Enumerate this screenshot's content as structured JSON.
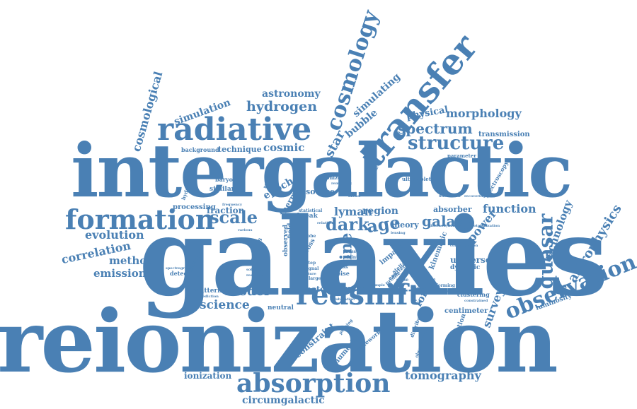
{
  "colors": {
    "word": "#4a80b4",
    "background": "#ffffff"
  },
  "words": {
    "reionization": "reionization",
    "galaxies": "galaxies",
    "intergalactic": "intergalactic",
    "radiative": "radiative",
    "transfer": "transfer",
    "cosmology": "cosmology",
    "redshift": "redshift",
    "absorption": "absorption",
    "formation": "formation",
    "observation": "observation",
    "structure": "structure",
    "spectrum": "spectrum",
    "hydrogen": "hydrogen",
    "astronomy": "astronomy",
    "morphology": "morphology",
    "quasar": "quasar",
    "astrophysics": "astrophysics",
    "technology": "technology",
    "star": "star",
    "bubble": "bubble",
    "simulating": "simulating",
    "physical": "physical",
    "transmission": "transmission",
    "cosmic": "cosmic",
    "technique": "technique",
    "background": "background",
    "simulation": "simulation",
    "cosmological": "cosmological",
    "scale": "scale",
    "evolution": "evolution",
    "correlation": "correlation",
    "method": "method",
    "emission": "emission",
    "lyman": "lyman",
    "dark": "dark",
    "age": "age",
    "region": "region",
    "galaxy": "galaxy",
    "function": "function",
    "absorber": "absorber",
    "power": "power",
    "theory": "theory",
    "line": "line",
    "model": "model",
    "science": "science",
    "forest": "forest",
    "survey": "survey",
    "universe": "universe",
    "dynamic": "dynamic",
    "kinematic": "kinematic",
    "tomography": "tomography",
    "circumgalactic": "circumgalactic",
    "ionization": "ionization",
    "constraint": "constraint",
    "numerical": "numerical",
    "framework": "framework",
    "photon": "photon",
    "neutral": "neutral",
    "scattering": "scattering",
    "centimeter": "centimeter",
    "luminosity": "luminosity",
    "clustering": "clustering",
    "contribution": "contribution",
    "epoch": "epoch",
    "thermal": "thermal",
    "source": "source",
    "fraction": "fraction",
    "processing": "processing",
    "similar": "similar",
    "baryonic": "baryonic",
    "hydrodynamical": "hydrodynamical",
    "ultraviolet": "ultraviolet",
    "spectroscopy": "spectroscopy",
    "parameter": "parameter",
    "break": "break",
    "statistical": "statistical",
    "impact": "impact",
    "observed": "observed",
    "field": "field",
    "cross": "cross",
    "analysis": "analysis",
    "detecting": "detecting",
    "galactic": "galactic",
    "noise": "noise",
    "heating": "heating",
    "photoionization": "photoionization",
    "data": "data",
    "ionized": "ionized",
    "frequency": "frequency",
    "spectrograph": "spectrograph",
    "prediction": "prediction",
    "distribution": "distribution",
    "observational": "observational",
    "forming": "forming",
    "constrained": "constrained",
    "recovering": "recovering",
    "fluctuation": "fluctuation",
    "excess": "excess",
    "signal": "signal",
    "mass": "mass",
    "faint": "faint",
    "resolution": "resolution",
    "various": "various",
    "greater": "greater",
    "probing": "probing",
    "stellar": "stellar",
    "emitter": "emitter",
    "profile": "profile",
    "sample": "sample",
    "environment": "environment",
    "potential": "potential",
    "conventional": "conventional",
    "relation": "relation",
    "solubility": "solubility",
    "signature": "signature",
    "remaining": "remaining",
    "combination": "combination",
    "thermodynamics": "thermodynamics",
    "concentration": "concentration",
    "scale_small": "scale",
    "large": "large",
    "lobe": "lobe",
    "open": "open",
    "step": "step",
    "effect": "effect",
    "lensing": "lensing",
    "pointing": "pointing",
    "model_small": "model",
    "metal": "metal"
  }
}
